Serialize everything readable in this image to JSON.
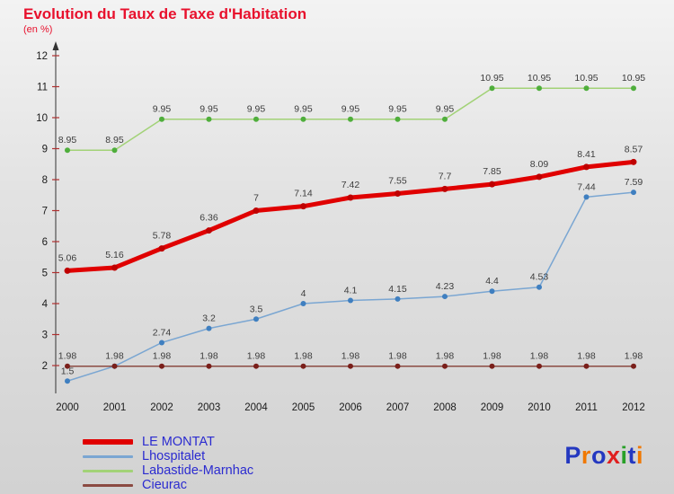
{
  "header": {
    "title": "Evolution du Taux de Taxe d'Habitation",
    "subtitle": "(en %)",
    "title_color": "#e8112d"
  },
  "chart_data": {
    "type": "line",
    "title": "Evolution du Taux de Taxe d'Habitation",
    "subtitle": "(en %)",
    "x": [
      2000,
      2001,
      2002,
      2003,
      2004,
      2005,
      2006,
      2007,
      2008,
      2009,
      2010,
      2011,
      2012
    ],
    "ylim": [
      1.4,
      12.3
    ],
    "yticks": [
      2,
      3,
      4,
      5,
      6,
      7,
      8,
      9,
      10,
      11,
      12
    ],
    "grid": false,
    "legend_position": "bottom-left",
    "series": [
      {
        "name": "LE MONTAT",
        "color": "#e00000",
        "marker_color": "#bf0000",
        "width": 5,
        "values": [
          5.06,
          5.16,
          5.78,
          6.36,
          7,
          7.14,
          7.42,
          7.55,
          7.7,
          7.85,
          8.09,
          8.41,
          8.57
        ],
        "labels": [
          "5.06",
          "5.16",
          "5.78",
          "6.36",
          "7",
          "7.14",
          "7.42",
          "7.55",
          "7.7",
          "7.85",
          "8.09",
          "8.41",
          "8.57"
        ]
      },
      {
        "name": "Lhospitalet",
        "color": "#7aa6d2",
        "marker_color": "#3f7fc0",
        "width": 1.5,
        "values": [
          1.5,
          1.98,
          2.74,
          3.2,
          3.5,
          4,
          4.1,
          4.15,
          4.23,
          4.4,
          4.53,
          7.44,
          7.59
        ],
        "labels": [
          "1.5",
          "",
          "2.74",
          "3.2",
          "3.5",
          "4",
          "4.1",
          "4.15",
          "4.23",
          "4.4",
          "4.53",
          "7.44",
          "7.59"
        ]
      },
      {
        "name": "Labastide-Marnhac",
        "color": "#a2d277",
        "marker_color": "#4fae3c",
        "width": 1.5,
        "values": [
          8.95,
          8.95,
          9.95,
          9.95,
          9.95,
          9.95,
          9.95,
          9.95,
          9.95,
          10.95,
          10.95,
          10.95,
          10.95
        ],
        "labels": [
          "8.95",
          "8.95",
          "9.95",
          "9.95",
          "9.95",
          "9.95",
          "9.95",
          "9.95",
          "9.95",
          "10.95",
          "10.95",
          "10.95",
          "10.95"
        ]
      },
      {
        "name": "Cieurac",
        "color": "#8b4a42",
        "marker_color": "#7a1f1a",
        "width": 1.5,
        "values": [
          1.98,
          1.98,
          1.98,
          1.98,
          1.98,
          1.98,
          1.98,
          1.98,
          1.98,
          1.98,
          1.98,
          1.98,
          1.98
        ],
        "labels": [
          "1.98",
          "1.98",
          "1.98",
          "1.98",
          "1.98",
          "1.98",
          "1.98",
          "1.98",
          "1.98",
          "1.98",
          "1.98",
          "1.98",
          "1.98"
        ]
      }
    ]
  },
  "legend": {
    "label_color": "#2b2bd0",
    "items": [
      {
        "label": "LE MONTAT",
        "color": "#e00000",
        "thick": true
      },
      {
        "label": "Lhospitalet",
        "color": "#7aa6d2",
        "thick": false
      },
      {
        "label": "Labastide-Marnhac",
        "color": "#a2d277",
        "thick": false
      },
      {
        "label": "Cieurac",
        "color": "#8b4a42",
        "thick": false
      }
    ]
  },
  "logo": {
    "letters": [
      {
        "ch": "P",
        "color": "#2438c0"
      },
      {
        "ch": "r",
        "color": "#f07800"
      },
      {
        "ch": "o",
        "color": "#2438c0"
      },
      {
        "ch": "x",
        "color": "#e02020"
      },
      {
        "ch": "i",
        "color": "#28a028"
      },
      {
        "ch": "t",
        "color": "#2438c0"
      },
      {
        "ch": "i",
        "color": "#f07800"
      }
    ]
  }
}
